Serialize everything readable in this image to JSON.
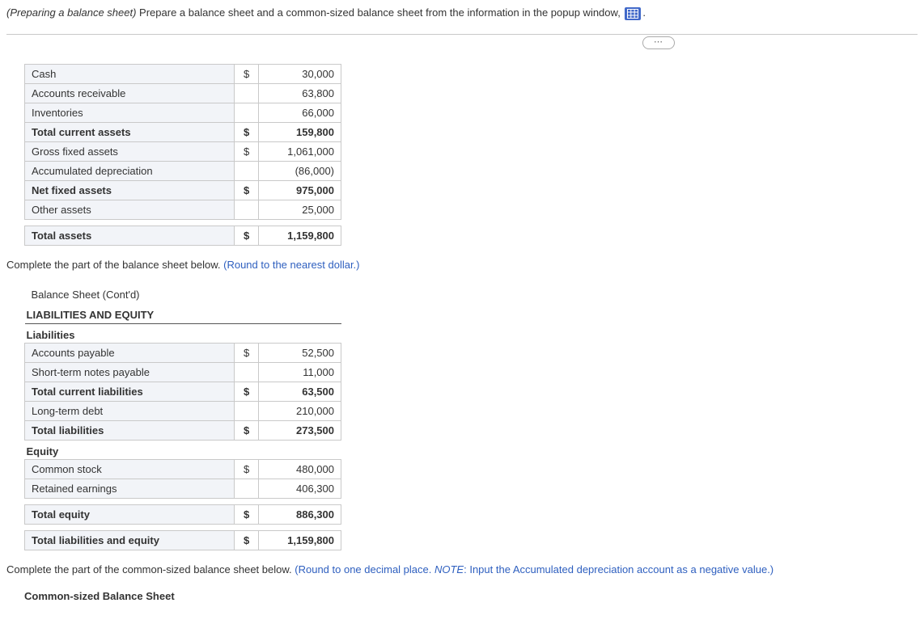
{
  "intro": {
    "prefix": "(Preparing a balance sheet)",
    "text": " Prepare a balance sheet and a common-sized balance sheet from the information in the popup window, ",
    "suffix": "."
  },
  "ellipsis": "⋯",
  "table1": {
    "rows": [
      {
        "label": "Cash",
        "cur": "$",
        "val": "30,000",
        "bold": false
      },
      {
        "label": "Accounts receivable",
        "cur": "",
        "val": "63,800",
        "bold": false
      },
      {
        "label": "Inventories",
        "cur": "",
        "val": "66,000",
        "bold": false
      },
      {
        "label": "Total current assets",
        "cur": "$",
        "val": "159,800",
        "bold": true
      },
      {
        "label": "Gross fixed assets",
        "cur": "$",
        "val": "1,061,000",
        "bold": false
      },
      {
        "label": "Accumulated depreciation",
        "cur": "",
        "val": "(86,000)",
        "bold": false
      },
      {
        "label": "Net fixed assets",
        "cur": "$",
        "val": "975,000",
        "bold": true
      },
      {
        "label": "Other assets",
        "cur": "",
        "val": "25,000",
        "bold": false
      },
      {
        "label": "Total assets",
        "cur": "$",
        "val": "1,159,800",
        "bold": true,
        "gapBefore": true
      }
    ]
  },
  "instr1": {
    "a": "Complete the part of the balance sheet below.  ",
    "b": "(Round to the nearest dollar.)"
  },
  "table2": {
    "title": "Balance Sheet (Cont'd)",
    "section": "LIABILITIES AND EQUITY",
    "sub1": "Liabilities",
    "rows1": [
      {
        "label": "Accounts payable",
        "cur": "$",
        "val": "52,500",
        "bold": false
      },
      {
        "label": "Short-term notes payable",
        "cur": "",
        "val": "11,000",
        "bold": false
      },
      {
        "label": "Total current liabilities",
        "cur": "$",
        "val": "63,500",
        "bold": true
      },
      {
        "label": "Long-term debt",
        "cur": "",
        "val": "210,000",
        "bold": false
      },
      {
        "label": "Total liabilities",
        "cur": "$",
        "val": "273,500",
        "bold": true
      }
    ],
    "sub2": "Equity",
    "rows2": [
      {
        "label": "Common stock",
        "cur": "$",
        "val": "480,000",
        "bold": false
      },
      {
        "label": "Retained earnings",
        "cur": "",
        "val": "406,300",
        "bold": false
      },
      {
        "label": "Total equity",
        "cur": "$",
        "val": "886,300",
        "bold": true,
        "gapBefore": true
      },
      {
        "label": "Total liabilities and equity",
        "cur": "$",
        "val": "1,159,800",
        "bold": true,
        "gapBefore": true
      }
    ]
  },
  "instr2": {
    "a": "Complete the part of the common-sized balance sheet below.  ",
    "b": "(Round to one decimal place. ",
    "c": "NOTE",
    "d": ": Input the Accumulated depreciation account as a negative value.)"
  },
  "footerTitle": "Common-sized Balance Sheet"
}
